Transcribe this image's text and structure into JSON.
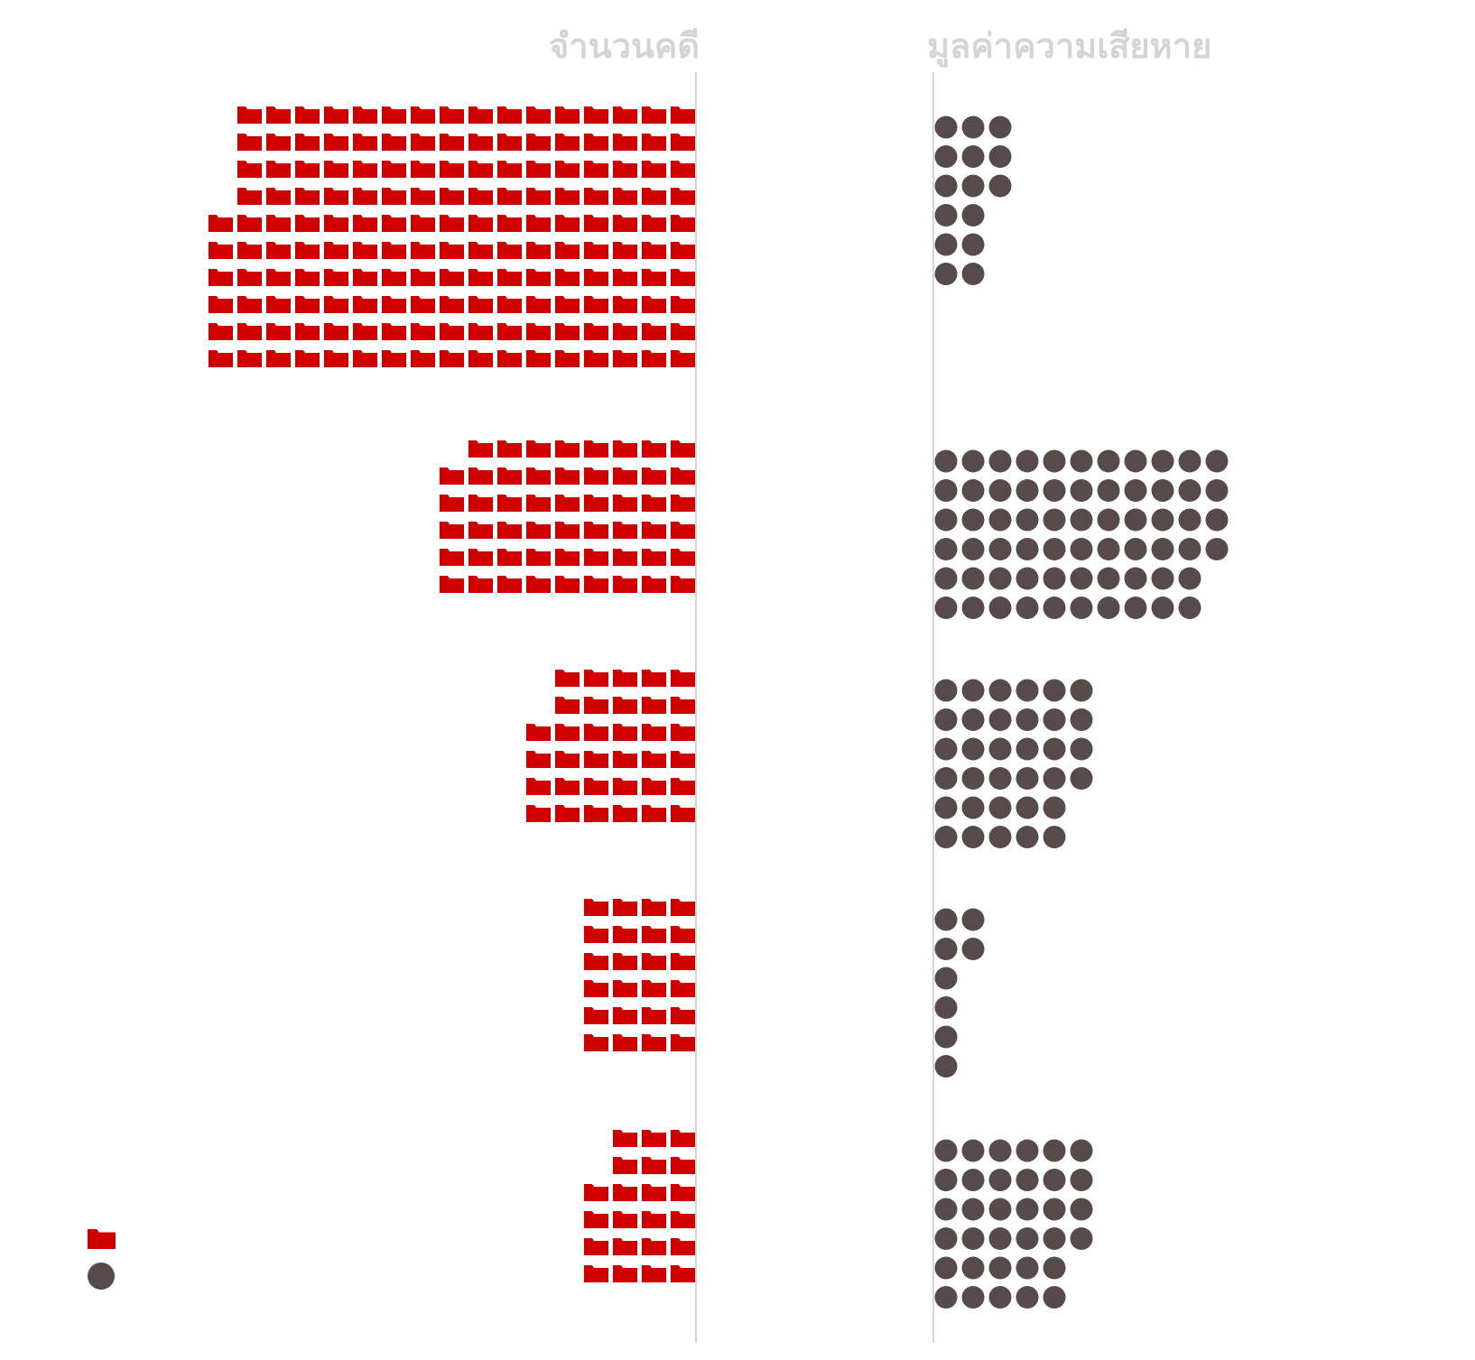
{
  "chart_data": {
    "type": "pictogram",
    "columns": [
      {
        "title": "จำนวนคดี",
        "icon": "folder-icon",
        "color": "#d10000"
      },
      {
        "title": "มูลค่าความเสียหาย",
        "icon": "circle-icon",
        "color": "#574a4a"
      }
    ],
    "groups": [
      {
        "cases": 166,
        "damage": 15
      },
      {
        "cases": 53,
        "damage": 64
      },
      {
        "cases": 34,
        "damage": 34
      },
      {
        "cases": 24,
        "damage": 8
      },
      {
        "cases": 22,
        "damage": 34
      }
    ],
    "legend": [
      {
        "icon": "folder-icon",
        "color": "#d10000"
      },
      {
        "icon": "circle-icon",
        "color": "#574a4a"
      }
    ]
  }
}
